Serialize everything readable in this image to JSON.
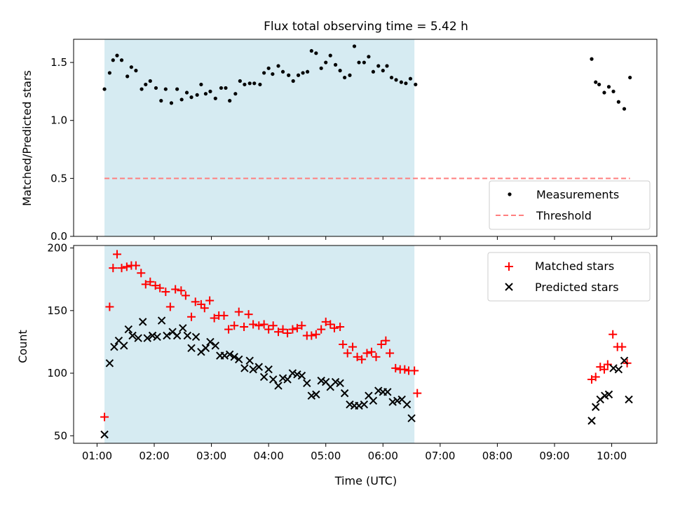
{
  "figure": {
    "title": "Flux total observing time = 5.42 h",
    "xlabel": "Time (UTC)",
    "xticks": [
      {
        "t": 1,
        "label": "01:00"
      },
      {
        "t": 2,
        "label": "02:00"
      },
      {
        "t": 3,
        "label": "03:00"
      },
      {
        "t": 4,
        "label": "04:00"
      },
      {
        "t": 5,
        "label": "05:00"
      },
      {
        "t": 6,
        "label": "06:00"
      },
      {
        "t": 7,
        "label": "07:00"
      },
      {
        "t": 8,
        "label": "08:00"
      },
      {
        "t": 9,
        "label": "09:00"
      },
      {
        "t": 10,
        "label": "10:00"
      }
    ],
    "xlim": [
      0.59,
      10.79
    ],
    "shaded_span": [
      1.13,
      6.55
    ],
    "colors": {
      "shade": "#add8e6",
      "measurement": "#000000",
      "threshold": "#ff7f7f",
      "matched": "#ff0000",
      "predicted": "#000000"
    }
  },
  "chart_data": [
    {
      "type": "scatter",
      "ylabel": "Matched/Predicted stars",
      "ylim": [
        0,
        1.7
      ],
      "yticks": [
        {
          "v": 0,
          "label": "0.0"
        },
        {
          "v": 0.5,
          "label": "0.5"
        },
        {
          "v": 1,
          "label": "1.0"
        },
        {
          "v": 1.5,
          "label": "1.5"
        }
      ],
      "legend": {
        "position": "lower-right",
        "entries": [
          "Measurements",
          "Threshold"
        ]
      },
      "threshold": {
        "name": "Threshold",
        "value": 0.5,
        "x_range": [
          1.13,
          10.32
        ]
      },
      "series": [
        {
          "name": "Measurements",
          "points": [
            [
              1.13,
              1.27
            ],
            [
              1.22,
              1.41
            ],
            [
              1.28,
              1.52
            ],
            [
              1.35,
              1.56
            ],
            [
              1.43,
              1.52
            ],
            [
              1.53,
              1.38
            ],
            [
              1.6,
              1.46
            ],
            [
              1.68,
              1.43
            ],
            [
              1.78,
              1.27
            ],
            [
              1.85,
              1.31
            ],
            [
              1.93,
              1.34
            ],
            [
              2.03,
              1.28
            ],
            [
              2.12,
              1.17
            ],
            [
              2.2,
              1.27
            ],
            [
              2.3,
              1.15
            ],
            [
              2.4,
              1.27
            ],
            [
              2.48,
              1.18
            ],
            [
              2.57,
              1.24
            ],
            [
              2.65,
              1.2
            ],
            [
              2.75,
              1.22
            ],
            [
              2.82,
              1.31
            ],
            [
              2.9,
              1.23
            ],
            [
              2.98,
              1.25
            ],
            [
              3.07,
              1.19
            ],
            [
              3.17,
              1.28
            ],
            [
              3.25,
              1.28
            ],
            [
              3.32,
              1.17
            ],
            [
              3.42,
              1.23
            ],
            [
              3.5,
              1.34
            ],
            [
              3.58,
              1.31
            ],
            [
              3.67,
              1.32
            ],
            [
              3.75,
              1.32
            ],
            [
              3.85,
              1.31
            ],
            [
              3.92,
              1.41
            ],
            [
              4.0,
              1.45
            ],
            [
              4.07,
              1.4
            ],
            [
              4.17,
              1.47
            ],
            [
              4.25,
              1.42
            ],
            [
              4.35,
              1.39
            ],
            [
              4.43,
              1.34
            ],
            [
              4.52,
              1.39
            ],
            [
              4.6,
              1.41
            ],
            [
              4.68,
              1.42
            ],
            [
              4.75,
              1.6
            ],
            [
              4.83,
              1.58
            ],
            [
              4.92,
              1.45
            ],
            [
              5.0,
              1.5
            ],
            [
              5.08,
              1.56
            ],
            [
              5.17,
              1.48
            ],
            [
              5.25,
              1.43
            ],
            [
              5.33,
              1.37
            ],
            [
              5.42,
              1.39
            ],
            [
              5.5,
              1.64
            ],
            [
              5.58,
              1.5
            ],
            [
              5.67,
              1.5
            ],
            [
              5.75,
              1.55
            ],
            [
              5.83,
              1.42
            ],
            [
              5.92,
              1.47
            ],
            [
              6.0,
              1.43
            ],
            [
              6.07,
              1.47
            ],
            [
              6.15,
              1.37
            ],
            [
              6.23,
              1.35
            ],
            [
              6.32,
              1.33
            ],
            [
              6.4,
              1.32
            ],
            [
              6.48,
              1.36
            ],
            [
              6.57,
              1.31
            ],
            [
              9.65,
              1.53
            ],
            [
              9.72,
              1.33
            ],
            [
              9.78,
              1.31
            ],
            [
              9.87,
              1.24
            ],
            [
              9.95,
              1.29
            ],
            [
              10.03,
              1.25
            ],
            [
              10.12,
              1.16
            ],
            [
              10.22,
              1.1
            ],
            [
              10.32,
              1.37
            ]
          ]
        }
      ]
    },
    {
      "type": "scatter",
      "ylabel": "Count",
      "ylim": [
        44,
        202
      ],
      "yticks": [
        {
          "v": 50,
          "label": "50"
        },
        {
          "v": 100,
          "label": "100"
        },
        {
          "v": 150,
          "label": "150"
        },
        {
          "v": 200,
          "label": "200"
        }
      ],
      "legend": {
        "position": "upper-right",
        "entries": [
          "Matched stars",
          "Predicted stars"
        ]
      },
      "series": [
        {
          "name": "Matched stars",
          "marker": "plus",
          "points": [
            [
              1.13,
              65
            ],
            [
              1.22,
              153
            ],
            [
              1.28,
              184
            ],
            [
              1.35,
              195
            ],
            [
              1.43,
              184
            ],
            [
              1.52,
              185
            ],
            [
              1.6,
              186
            ],
            [
              1.68,
              186
            ],
            [
              1.77,
              180
            ],
            [
              1.85,
              171
            ],
            [
              1.93,
              173
            ],
            [
              2.02,
              170
            ],
            [
              2.1,
              168
            ],
            [
              2.2,
              165
            ],
            [
              2.28,
              153
            ],
            [
              2.37,
              167
            ],
            [
              2.47,
              166
            ],
            [
              2.55,
              162
            ],
            [
              2.65,
              145
            ],
            [
              2.72,
              157
            ],
            [
              2.82,
              155
            ],
            [
              2.88,
              152
            ],
            [
              2.97,
              158
            ],
            [
              3.05,
              144
            ],
            [
              3.13,
              146
            ],
            [
              3.22,
              146
            ],
            [
              3.3,
              135
            ],
            [
              3.4,
              138
            ],
            [
              3.48,
              149
            ],
            [
              3.57,
              137
            ],
            [
              3.65,
              147
            ],
            [
              3.73,
              139
            ],
            [
              3.83,
              138
            ],
            [
              3.92,
              139
            ],
            [
              4.0,
              135
            ],
            [
              4.08,
              138
            ],
            [
              4.17,
              133
            ],
            [
              4.25,
              135
            ],
            [
              4.33,
              132
            ],
            [
              4.42,
              135
            ],
            [
              4.5,
              136
            ],
            [
              4.58,
              138
            ],
            [
              4.67,
              130
            ],
            [
              4.75,
              130
            ],
            [
              4.83,
              131
            ],
            [
              4.92,
              135
            ],
            [
              5.0,
              141
            ],
            [
              5.08,
              139
            ],
            [
              5.15,
              136
            ],
            [
              5.25,
              137
            ],
            [
              5.3,
              123
            ],
            [
              5.38,
              116
            ],
            [
              5.47,
              121
            ],
            [
              5.55,
              113
            ],
            [
              5.63,
              111
            ],
            [
              5.72,
              116
            ],
            [
              5.8,
              117
            ],
            [
              5.88,
              113
            ],
            [
              5.97,
              123
            ],
            [
              6.05,
              126
            ],
            [
              6.12,
              116
            ],
            [
              6.22,
              104
            ],
            [
              6.3,
              103
            ],
            [
              6.38,
              103
            ],
            [
              6.45,
              102
            ],
            [
              6.55,
              102
            ],
            [
              6.6,
              84
            ],
            [
              9.65,
              95
            ],
            [
              9.72,
              97
            ],
            [
              9.8,
              105
            ],
            [
              9.87,
              103
            ],
            [
              9.93,
              107
            ],
            [
              10.02,
              131
            ],
            [
              10.1,
              121
            ],
            [
              10.18,
              121
            ],
            [
              10.27,
              108
            ]
          ]
        },
        {
          "name": "Predicted stars",
          "marker": "x",
          "points": [
            [
              1.13,
              51
            ],
            [
              1.22,
              108
            ],
            [
              1.3,
              121
            ],
            [
              1.38,
              126
            ],
            [
              1.47,
              122
            ],
            [
              1.55,
              135
            ],
            [
              1.62,
              130
            ],
            [
              1.72,
              128
            ],
            [
              1.8,
              141
            ],
            [
              1.88,
              128
            ],
            [
              1.97,
              130
            ],
            [
              2.05,
              129
            ],
            [
              2.13,
              142
            ],
            [
              2.22,
              130
            ],
            [
              2.32,
              133
            ],
            [
              2.4,
              130
            ],
            [
              2.5,
              136
            ],
            [
              2.58,
              130
            ],
            [
              2.65,
              120
            ],
            [
              2.73,
              129
            ],
            [
              2.82,
              117
            ],
            [
              2.9,
              120
            ],
            [
              2.98,
              125
            ],
            [
              3.07,
              122
            ],
            [
              3.15,
              114
            ],
            [
              3.23,
              114
            ],
            [
              3.32,
              115
            ],
            [
              3.4,
              113
            ],
            [
              3.48,
              111
            ],
            [
              3.58,
              104
            ],
            [
              3.67,
              110
            ],
            [
              3.73,
              103
            ],
            [
              3.83,
              105
            ],
            [
              3.92,
              97
            ],
            [
              4.0,
              103
            ],
            [
              4.08,
              95
            ],
            [
              4.17,
              90
            ],
            [
              4.25,
              96
            ],
            [
              4.33,
              95
            ],
            [
              4.42,
              100
            ],
            [
              4.5,
              99
            ],
            [
              4.58,
              98
            ],
            [
              4.67,
              92
            ],
            [
              4.75,
              82
            ],
            [
              4.83,
              83
            ],
            [
              4.92,
              94
            ],
            [
              5.0,
              93
            ],
            [
              5.08,
              89
            ],
            [
              5.17,
              93
            ],
            [
              5.25,
              92
            ],
            [
              5.33,
              84
            ],
            [
              5.42,
              75
            ],
            [
              5.5,
              74
            ],
            [
              5.58,
              74
            ],
            [
              5.67,
              75
            ],
            [
              5.75,
              82
            ],
            [
              5.83,
              78
            ],
            [
              5.92,
              86
            ],
            [
              6.0,
              85
            ],
            [
              6.08,
              85
            ],
            [
              6.17,
              77
            ],
            [
              6.25,
              78
            ],
            [
              6.33,
              79
            ],
            [
              6.42,
              75
            ],
            [
              6.5,
              64
            ],
            [
              9.65,
              62
            ],
            [
              9.72,
              73
            ],
            [
              9.8,
              79
            ],
            [
              9.88,
              82
            ],
            [
              9.95,
              83
            ],
            [
              10.03,
              104
            ],
            [
              10.12,
              103
            ],
            [
              10.22,
              110
            ],
            [
              10.3,
              79
            ]
          ]
        }
      ]
    }
  ]
}
